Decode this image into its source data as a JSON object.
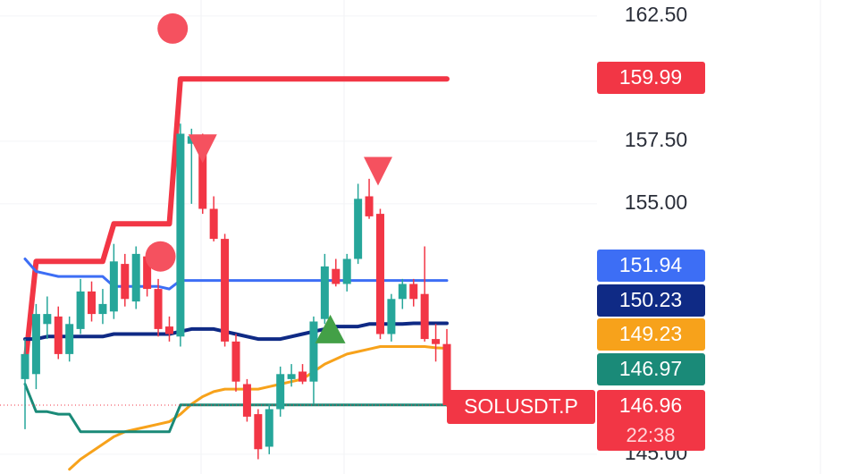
{
  "chart_data": {
    "type": "candlestick",
    "ylim": [
      144.21,
      163.14
    ],
    "yticks": [
      {
        "value": 162.5,
        "label": "162.50"
      },
      {
        "value": 157.5,
        "label": "157.50"
      },
      {
        "value": 155,
        "label": "155.00"
      },
      {
        "value": 145,
        "label": "145.00"
      }
    ],
    "candles": {
      "open": [
        148.0,
        148.2,
        150.2,
        150.5,
        149.0,
        150.0,
        151.5,
        150.6,
        150.7,
        152.6,
        151.1,
        152.9,
        151.6,
        150.1,
        149.7,
        157.4,
        157.6,
        154.8,
        153.6,
        149.5,
        147.8,
        146.6,
        145.3,
        146.8,
        148.0,
        148.3,
        147.9,
        150.4,
        152.4,
        151.8,
        152.8,
        155.3,
        154.6,
        149.8,
        151.2,
        151.8,
        151.4,
        149.6,
        149.4
      ],
      "high": [
        149.6,
        151.0,
        151.3,
        150.9,
        150.5,
        152.0,
        151.9,
        151.6,
        153.4,
        153.0,
        153.3,
        153.1,
        152.0,
        150.5,
        158.2,
        158.0,
        157.8,
        155.3,
        153.8,
        149.8,
        148.0,
        146.8,
        147.0,
        148.5,
        148.6,
        148.6,
        150.5,
        153.0,
        152.8,
        153.0,
        155.8,
        156.0,
        154.8,
        151.4,
        152.0,
        152.0,
        153.3,
        150.2,
        150.0
      ],
      "low": [
        146.0,
        147.6,
        149.6,
        148.8,
        148.7,
        149.8,
        150.3,
        150.2,
        150.4,
        150.9,
        150.8,
        151.3,
        149.7,
        149.5,
        149.3,
        155.0,
        154.6,
        153.5,
        149.3,
        147.5,
        146.3,
        144.8,
        145.0,
        146.5,
        147.7,
        147.8,
        147.0,
        150.2,
        151.7,
        151.5,
        152.6,
        154.4,
        149.6,
        149.5,
        150.8,
        150.9,
        149.5,
        148.7,
        146.9
      ],
      "close": [
        149.0,
        150.6,
        150.6,
        149.0,
        150.2,
        151.5,
        150.6,
        151.0,
        152.7,
        151.2,
        153.0,
        151.6,
        150.0,
        149.8,
        157.8,
        157.7,
        154.8,
        153.6,
        149.5,
        147.9,
        146.5,
        145.2,
        146.8,
        148.2,
        148.2,
        147.9,
        150.3,
        152.5,
        151.8,
        152.8,
        155.2,
        154.5,
        149.8,
        151.2,
        151.8,
        151.2,
        149.6,
        149.4,
        146.96
      ],
      "up_color": "#26a69a",
      "down_color": "#f23645"
    },
    "series": [
      {
        "color": "#f23645",
        "values": [
          148.5,
          152.7,
          152.7,
          152.7,
          152.7,
          152.7,
          152.7,
          152.7,
          154.2,
          154.2,
          154.2,
          154.2,
          154.2,
          154.2,
          159.99,
          159.99,
          159.99,
          159.99,
          159.99,
          159.99,
          159.99,
          159.99,
          159.99,
          159.99,
          159.99,
          159.99,
          159.99,
          159.99,
          159.99,
          159.99,
          159.99,
          159.99,
          159.99,
          159.99,
          159.99,
          159.99,
          159.99,
          159.99,
          159.99
        ]
      },
      {
        "color": "#3d6ef5",
        "values": [
          152.8,
          152.3,
          152.2,
          152.1,
          152.1,
          152.1,
          152.1,
          152.1,
          151.7,
          151.7,
          151.7,
          151.7,
          151.7,
          151.6,
          151.94,
          151.94,
          151.94,
          151.94,
          151.94,
          151.94,
          151.94,
          151.94,
          151.94,
          151.94,
          151.94,
          151.94,
          151.94,
          151.94,
          151.94,
          151.94,
          151.94,
          151.94,
          151.94,
          151.94,
          151.94,
          151.94,
          151.94,
          151.94,
          151.94
        ]
      },
      {
        "color": "#0f2a85",
        "values": [
          149.6,
          149.6,
          149.7,
          149.7,
          149.7,
          149.7,
          149.7,
          149.7,
          149.8,
          149.8,
          149.8,
          149.8,
          149.8,
          149.8,
          149.9,
          150.0,
          150.0,
          150.0,
          149.9,
          149.8,
          149.7,
          149.6,
          149.6,
          149.6,
          149.7,
          149.8,
          149.9,
          150.0,
          150.1,
          150.1,
          150.1,
          150.2,
          150.2,
          150.2,
          150.2,
          150.23,
          150.23,
          150.23,
          150.23
        ]
      },
      {
        "color": "#f7a21b",
        "values": [
          null,
          null,
          null,
          null,
          144.4,
          144.8,
          145.1,
          145.4,
          145.7,
          145.9,
          146.0,
          146.1,
          146.2,
          146.3,
          146.6,
          147.0,
          147.3,
          147.5,
          147.6,
          147.6,
          147.6,
          147.6,
          147.7,
          147.8,
          147.9,
          148.0,
          148.3,
          148.6,
          148.8,
          149.0,
          149.1,
          149.2,
          149.3,
          149.3,
          149.3,
          149.3,
          149.3,
          149.25,
          149.23
        ]
      },
      {
        "color": "#1a8a78",
        "values": [
          147.8,
          146.7,
          146.7,
          146.6,
          146.6,
          145.9,
          145.9,
          145.9,
          145.9,
          145.9,
          145.9,
          145.9,
          145.9,
          145.9,
          146.97,
          146.97,
          146.97,
          146.97,
          146.97,
          146.97,
          146.97,
          146.97,
          146.97,
          146.97,
          146.97,
          146.97,
          146.97,
          146.97,
          146.97,
          146.97,
          146.97,
          146.97,
          146.97,
          146.97,
          146.97,
          146.97,
          146.97,
          146.97,
          146.97
        ]
      }
    ],
    "signals": [
      {
        "index": 13.3,
        "price": 162.0,
        "shape": "circle",
        "color": "#f5515f"
      },
      {
        "index": 12.2,
        "price": 152.9,
        "shape": "circle",
        "color": "#f5515f"
      },
      {
        "index": 16.0,
        "price": 157.2,
        "shape": "down",
        "color": "#f5515f"
      },
      {
        "index": 31.8,
        "price": 156.3,
        "shape": "down",
        "color": "#f5515f"
      },
      {
        "index": 27.5,
        "price": 150.0,
        "shape": "up",
        "color": "#43a047"
      }
    ],
    "price_labels": [
      {
        "value": 159.99,
        "label": "159.99",
        "color": "#f23645"
      },
      {
        "value": 151.94,
        "label": "151.94",
        "color": "#3d6ef5"
      },
      {
        "value": 150.23,
        "label": "150.23",
        "color": "#0f2a85"
      },
      {
        "value": 149.23,
        "label": "149.23",
        "color": "#f7a21b"
      },
      {
        "value": 146.97,
        "label": "146.97",
        "color": "#1a8a78"
      },
      {
        "value": 146.96,
        "label": "146.96",
        "color": "#f23645",
        "symbol": "SOLUSDT.P",
        "countdown": "22:38"
      }
    ]
  }
}
